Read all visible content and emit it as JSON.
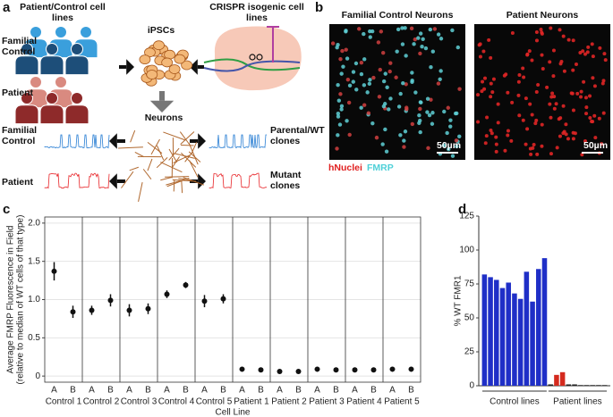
{
  "panels": [
    "a",
    "b",
    "c",
    "d"
  ],
  "diagram": {
    "lines_title": "Patient/Control cell lines",
    "crispr_title": "CRISPR isogenic cell lines",
    "ipscs": "iPSCs",
    "neurons": "Neurons",
    "row_control": "Familial Control",
    "row_patient": "Patient",
    "trace_control": "Familial Control",
    "trace_patient": "Patient",
    "wt_clones": "Parental/WT clones",
    "mutant_clones": "Mutant clones"
  },
  "images": {
    "control_title": "Familial Control Neurons",
    "patient_title": "Patient Neurons",
    "scale_control": "50µm",
    "scale_patient": "50µm",
    "legend_nuclei": "hNuclei",
    "legend_fmrp": "FMRP"
  },
  "chart_data": [
    {
      "type": "dot",
      "ylabel": [
        "Average FMRP Fluorescence in Field",
        "(relative to median of WT cells of that type)"
      ],
      "xlabel": "Cell Line",
      "color": "#111111",
      "ylim": [
        -0.08,
        2.08
      ],
      "yticks": [
        0,
        0.5,
        {
          "value": 1,
          "label": "1.0"
        },
        1.5,
        {
          "value": 2,
          "label": "2.0"
        }
      ],
      "grid": true,
      "groups": [
        {
          "name": "Control 1",
          "categories": [
            "A",
            "B"
          ],
          "values": [
            1.37,
            0.84
          ],
          "errors": [
            0.12,
            0.08
          ]
        },
        {
          "name": "Control 2",
          "categories": [
            "A",
            "B"
          ],
          "values": [
            0.86,
            0.99
          ],
          "errors": [
            0.06,
            0.08
          ]
        },
        {
          "name": "Control 3",
          "categories": [
            "A",
            "B"
          ],
          "values": [
            0.86,
            0.88
          ],
          "errors": [
            0.08,
            0.07
          ]
        },
        {
          "name": "Control 4",
          "categories": [
            "A",
            "B"
          ],
          "values": [
            1.07,
            1.19
          ],
          "errors": [
            0.05,
            0.04
          ]
        },
        {
          "name": "Control 5",
          "categories": [
            "A",
            "B"
          ],
          "values": [
            0.98,
            1.01
          ],
          "errors": [
            0.08,
            0.06
          ]
        },
        {
          "name": "Patient 1",
          "categories": [
            "A",
            "B"
          ],
          "values": [
            0.09,
            0.08
          ],
          "errors": [
            0.01,
            0.01
          ]
        },
        {
          "name": "Patient 2",
          "categories": [
            "A",
            "B"
          ],
          "values": [
            0.06,
            0.06
          ],
          "errors": [
            0.01,
            0.01
          ]
        },
        {
          "name": "Patient 3",
          "categories": [
            "A",
            "B"
          ],
          "values": [
            0.09,
            0.08
          ],
          "errors": [
            0.01,
            0.01
          ]
        },
        {
          "name": "Patient 4",
          "categories": [
            "A",
            "B"
          ],
          "values": [
            0.08,
            0.08
          ],
          "errors": [
            0.01,
            0.01
          ]
        },
        {
          "name": "Patient 5",
          "categories": [
            "A",
            "B"
          ],
          "values": [
            0.09,
            0.09
          ],
          "errors": [
            0.01,
            0.01
          ]
        }
      ]
    },
    {
      "type": "bar",
      "ylabel": "% WT FMR1",
      "ylim": [
        0,
        125
      ],
      "yticks": [
        0,
        25,
        50,
        75,
        100,
        125
      ],
      "series": [
        {
          "name": "Control lines",
          "colors": [
            "#1f2fc7",
            "#1f2fc7",
            "#1f2fc7",
            "#1f2fc7",
            "#1f2fc7",
            "#1f2fc7",
            "#1f2fc7",
            "#1f2fc7",
            "#1f2fc7",
            "#1f2fc7",
            "#1f2fc7"
          ],
          "values": [
            82,
            80,
            78,
            72,
            76,
            68,
            64,
            84,
            62,
            86,
            94
          ]
        },
        {
          "name": "Patient lines",
          "colors": [
            "#222222",
            "#d42a1e",
            "#d42a1e",
            "#222222",
            "#222222",
            "#222222",
            "#222222",
            "#222222",
            "#222222",
            "#222222"
          ],
          "values": [
            1,
            8,
            10,
            1,
            1,
            0.5,
            0.5,
            0.5,
            0.5,
            0.5
          ]
        }
      ]
    }
  ]
}
